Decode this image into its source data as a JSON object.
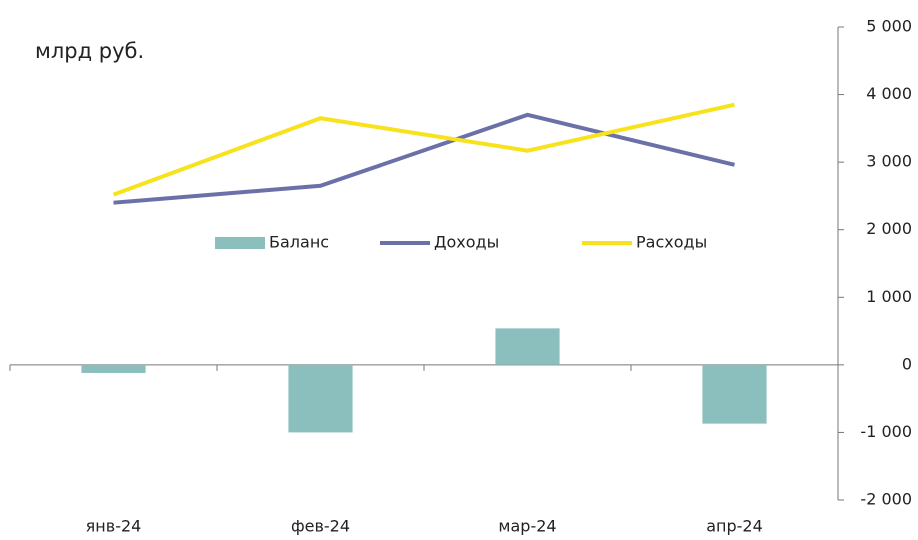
{
  "chart_data": {
    "type": "combo",
    "subtitle": "млрд руб.",
    "categories": [
      "янв-24",
      "фев-24",
      "мар-24",
      "апр-24"
    ],
    "series": [
      {
        "name": "Баланс",
        "kind": "bar",
        "color": "#8bbfbd",
        "values": [
          -120,
          -1000,
          540,
          -870
        ]
      },
      {
        "name": "Доходы",
        "kind": "line",
        "color": "#6b70a8",
        "values": [
          2400,
          2650,
          3700,
          2960
        ]
      },
      {
        "name": "Расходы",
        "kind": "line",
        "color": "#f7e21c",
        "values": [
          2520,
          3650,
          3170,
          3850
        ]
      }
    ],
    "ylim": [
      -2000,
      5000
    ],
    "yticks": [
      {
        "value": -2000,
        "label": "-2 000"
      },
      {
        "value": -1000,
        "label": "-1 000"
      },
      0,
      {
        "value": 1000,
        "label": "1 000"
      },
      {
        "value": 2000,
        "label": "2 000"
      },
      {
        "value": 3000,
        "label": "3 000"
      },
      {
        "value": 4000,
        "label": "4 000"
      },
      {
        "value": 5000,
        "label": "5 000"
      }
    ]
  }
}
